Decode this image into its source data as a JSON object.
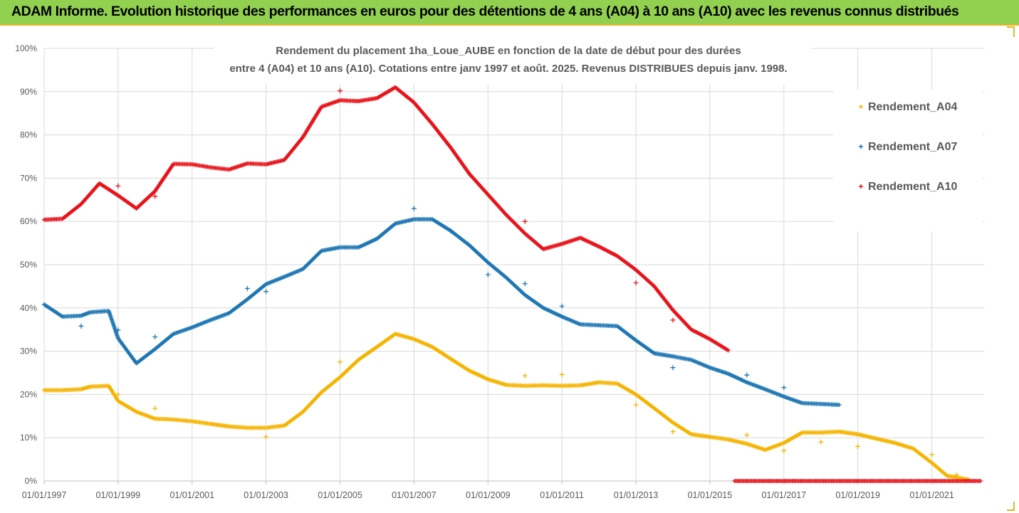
{
  "banner": {
    "title": "ADAM Informe. Evolution historique des performances en euros pour des détentions de 4 ans (A04) à 10 ans (A10) avec les revenus connus distribués",
    "background": "#92d050",
    "accent": "#e6b422"
  },
  "chart_data": {
    "type": "scatter",
    "title_lines": [
      "Rendement du placement 1ha_Loue_AUBE en fonction de la date de début pour des durées",
      "entre 4 (A04) et 10 ans (A10). Cotations entre janv 1997 et août. 2025. Revenus DISTRIBUES depuis janv. 1998."
    ],
    "xlabel": "",
    "ylabel": "",
    "x_ticks": [
      "01/01/1997",
      "01/01/1999",
      "01/01/2001",
      "01/01/2003",
      "01/01/2005",
      "01/01/2007",
      "01/01/2009",
      "01/01/2011",
      "01/01/2013",
      "01/01/2015",
      "01/01/2017",
      "01/01/2019",
      "01/01/2021"
    ],
    "y_ticks": [
      "0%",
      "10%",
      "20%",
      "30%",
      "40%",
      "50%",
      "60%",
      "70%",
      "80%",
      "90%",
      "100%"
    ],
    "xlim": [
      "1997-01-01",
      "2022-06-01"
    ],
    "ylim": [
      0,
      100
    ],
    "grid": true,
    "legend_position": "right",
    "series": [
      {
        "name": "Rendement_A04",
        "color": "#f5b400",
        "points": [
          [
            "1997-01",
            21.0
          ],
          [
            "1997-07",
            21.0
          ],
          [
            "1998-01",
            21.2
          ],
          [
            "1998-04",
            21.8
          ],
          [
            "1998-10",
            22.0
          ],
          [
            "1999-01",
            18.5
          ],
          [
            "1999-07",
            16.0
          ],
          [
            "2000-01",
            14.4
          ],
          [
            "2000-07",
            14.2
          ],
          [
            "2001-01",
            13.8
          ],
          [
            "2001-07",
            13.2
          ],
          [
            "2002-01",
            12.6
          ],
          [
            "2002-07",
            12.3
          ],
          [
            "2003-01",
            12.3
          ],
          [
            "2003-07",
            12.8
          ],
          [
            "2004-01",
            16.0
          ],
          [
            "2004-07",
            20.5
          ],
          [
            "2005-01",
            24.0
          ],
          [
            "2005-07",
            28.0
          ],
          [
            "2006-01",
            31.0
          ],
          [
            "2006-07",
            34.0
          ],
          [
            "2007-01",
            32.8
          ],
          [
            "2007-07",
            31.0
          ],
          [
            "2008-01",
            28.2
          ],
          [
            "2008-07",
            25.5
          ],
          [
            "2009-01",
            23.5
          ],
          [
            "2009-07",
            22.2
          ],
          [
            "2010-01",
            22.0
          ],
          [
            "2010-07",
            22.1
          ],
          [
            "2011-01",
            22.0
          ],
          [
            "2011-07",
            22.1
          ],
          [
            "2012-01",
            22.8
          ],
          [
            "2012-07",
            22.5
          ],
          [
            "2013-01",
            20.0
          ],
          [
            "2013-07",
            16.8
          ],
          [
            "2014-01",
            13.5
          ],
          [
            "2014-07",
            10.8
          ],
          [
            "2015-01",
            10.2
          ],
          [
            "2015-07",
            9.6
          ],
          [
            "2016-01",
            8.6
          ],
          [
            "2016-07",
            7.2
          ],
          [
            "2017-01",
            8.8
          ],
          [
            "2017-07",
            11.2
          ],
          [
            "2018-01",
            11.2
          ],
          [
            "2018-07",
            11.4
          ],
          [
            "2019-01",
            10.8
          ],
          [
            "2019-07",
            9.8
          ],
          [
            "2020-01",
            8.8
          ],
          [
            "2020-07",
            7.5
          ],
          [
            "2021-01",
            4.2
          ],
          [
            "2021-06",
            1.2
          ],
          [
            "2022-01",
            0.3
          ]
        ],
        "outliers": [
          [
            "1999-01",
            20.0
          ],
          [
            "2000-01",
            16.8
          ],
          [
            "2003-01",
            10.2
          ],
          [
            "2005-01",
            27.5
          ],
          [
            "2010-01",
            24.3
          ],
          [
            "2011-01",
            24.6
          ],
          [
            "2013-01",
            17.6
          ],
          [
            "2014-01",
            11.4
          ],
          [
            "2016-01",
            10.6
          ],
          [
            "2017-01",
            7.0
          ],
          [
            "2018-01",
            9.0
          ],
          [
            "2019-01",
            8.0
          ],
          [
            "2021-01",
            6.1
          ],
          [
            "2021-09",
            1.4
          ]
        ]
      },
      {
        "name": "Rendement_A07",
        "color": "#1f77b4",
        "points": [
          [
            "1997-01",
            40.8
          ],
          [
            "1997-07",
            38.0
          ],
          [
            "1998-01",
            38.2
          ],
          [
            "1998-04",
            39.0
          ],
          [
            "1998-10",
            39.3
          ],
          [
            "1999-01",
            33.0
          ],
          [
            "1999-07",
            27.2
          ],
          [
            "2000-01",
            30.5
          ],
          [
            "2000-07",
            34.0
          ],
          [
            "2001-01",
            35.5
          ],
          [
            "2001-07",
            37.2
          ],
          [
            "2002-01",
            38.8
          ],
          [
            "2002-07",
            42.0
          ],
          [
            "2003-01",
            45.5
          ],
          [
            "2003-07",
            47.2
          ],
          [
            "2004-01",
            49.0
          ],
          [
            "2004-07",
            53.2
          ],
          [
            "2005-01",
            54.0
          ],
          [
            "2005-07",
            54.0
          ],
          [
            "2006-01",
            56.0
          ],
          [
            "2006-07",
            59.5
          ],
          [
            "2007-01",
            60.5
          ],
          [
            "2007-07",
            60.5
          ],
          [
            "2008-01",
            57.8
          ],
          [
            "2008-07",
            54.5
          ],
          [
            "2009-01",
            50.5
          ],
          [
            "2009-07",
            47.0
          ],
          [
            "2010-01",
            43.0
          ],
          [
            "2010-07",
            40.0
          ],
          [
            "2011-01",
            38.0
          ],
          [
            "2011-07",
            36.2
          ],
          [
            "2012-01",
            36.0
          ],
          [
            "2012-07",
            35.8
          ],
          [
            "2013-01",
            32.5
          ],
          [
            "2013-07",
            29.5
          ],
          [
            "2014-01",
            28.8
          ],
          [
            "2014-07",
            28.0
          ],
          [
            "2015-01",
            26.2
          ],
          [
            "2015-07",
            24.8
          ],
          [
            "2016-01",
            22.8
          ],
          [
            "2016-07",
            21.2
          ],
          [
            "2017-01",
            19.5
          ],
          [
            "2017-07",
            18.0
          ],
          [
            "2018-01",
            17.8
          ],
          [
            "2018-07",
            17.6
          ]
        ],
        "outliers": [
          [
            "1998-01",
            35.8
          ],
          [
            "1999-01",
            34.9
          ],
          [
            "2000-01",
            33.3
          ],
          [
            "2002-07",
            44.5
          ],
          [
            "2003-01",
            43.8
          ],
          [
            "2007-01",
            63.0
          ],
          [
            "2008-01",
            57.8
          ],
          [
            "2009-01",
            47.7
          ],
          [
            "2010-01",
            45.6
          ],
          [
            "2011-01",
            40.4
          ],
          [
            "2014-01",
            26.2
          ],
          [
            "2016-01",
            24.5
          ],
          [
            "2017-01",
            21.6
          ]
        ]
      },
      {
        "name": "Rendement_A10",
        "color": "#e8141c",
        "points": [
          [
            "1997-01",
            60.4
          ],
          [
            "1997-07",
            60.6
          ],
          [
            "1998-01",
            64.0
          ],
          [
            "1998-07",
            68.8
          ],
          [
            "1999-01",
            66.0
          ],
          [
            "1999-07",
            63.0
          ],
          [
            "2000-01",
            67.0
          ],
          [
            "2000-07",
            73.3
          ],
          [
            "2001-01",
            73.2
          ],
          [
            "2001-07",
            72.5
          ],
          [
            "2002-01",
            72.0
          ],
          [
            "2002-07",
            73.4
          ],
          [
            "2003-01",
            73.2
          ],
          [
            "2003-07",
            74.2
          ],
          [
            "2004-01",
            79.5
          ],
          [
            "2004-07",
            86.5
          ],
          [
            "2005-01",
            88.0
          ],
          [
            "2005-07",
            87.8
          ],
          [
            "2006-01",
            88.5
          ],
          [
            "2006-07",
            91.0
          ],
          [
            "2007-01",
            87.5
          ],
          [
            "2007-07",
            82.5
          ],
          [
            "2008-01",
            77.0
          ],
          [
            "2008-07",
            71.0
          ],
          [
            "2009-01",
            66.2
          ],
          [
            "2009-07",
            61.5
          ],
          [
            "2010-01",
            57.2
          ],
          [
            "2010-07",
            53.6
          ],
          [
            "2011-01",
            54.8
          ],
          [
            "2011-07",
            56.2
          ],
          [
            "2012-01",
            54.2
          ],
          [
            "2012-07",
            52.0
          ],
          [
            "2013-01",
            48.8
          ],
          [
            "2013-07",
            45.0
          ],
          [
            "2014-01",
            39.5
          ],
          [
            "2014-07",
            35.0
          ],
          [
            "2015-01",
            32.8
          ],
          [
            "2015-07",
            30.2
          ]
        ],
        "outliers": [
          [
            "1999-01",
            68.2
          ],
          [
            "2000-01",
            65.8
          ],
          [
            "2005-01",
            90.2
          ],
          [
            "2010-01",
            60.0
          ],
          [
            "2013-01",
            45.8
          ],
          [
            "2014-01",
            37.2
          ]
        ],
        "zero_segment": [
          "2015-09",
          "2022-05"
        ]
      }
    ]
  }
}
